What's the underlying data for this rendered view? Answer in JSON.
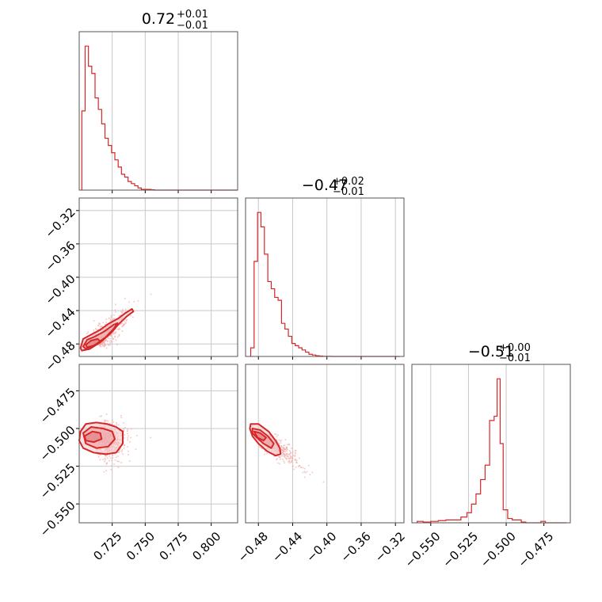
{
  "colors": {
    "accent": "#d62728",
    "fill": "#f4c6c7",
    "grid": "#c8c8c8",
    "frame": "#555555",
    "scatter": "#f2a9aa"
  },
  "chart_data": [
    {
      "type": "histogram",
      "panel": "p11",
      "title_main": "0.72",
      "title_sup": "+0.01",
      "title_sub": "−0.01",
      "xlim": [
        0.7,
        0.82
      ],
      "ylim": [
        0,
        1.1
      ],
      "grid": true,
      "bin_edges": [
        0.702,
        0.7045,
        0.707,
        0.7095,
        0.712,
        0.7145,
        0.717,
        0.7195,
        0.722,
        0.7245,
        0.727,
        0.7295,
        0.732,
        0.7345,
        0.737,
        0.7395,
        0.742,
        0.7445,
        0.747,
        0.7495,
        0.752,
        0.7545,
        0.757,
        0.82
      ],
      "counts": [
        0.55,
        1.0,
        0.86,
        0.81,
        0.64,
        0.56,
        0.46,
        0.36,
        0.31,
        0.26,
        0.21,
        0.16,
        0.11,
        0.09,
        0.06,
        0.045,
        0.03,
        0.015,
        0.005,
        0.005,
        0.005,
        0.002,
        0.0
      ]
    },
    {
      "type": "histogram",
      "panel": "p22",
      "title_main": "−0.47",
      "title_sup": "+0.02",
      "title_sub": "−0.01",
      "xlim": [
        -0.495,
        -0.31
      ],
      "ylim": [
        0,
        1.1
      ],
      "grid": true,
      "bin_edges": [
        -0.489,
        -0.485,
        -0.481,
        -0.477,
        -0.473,
        -0.469,
        -0.465,
        -0.461,
        -0.457,
        -0.453,
        -0.449,
        -0.445,
        -0.441,
        -0.437,
        -0.433,
        -0.429,
        -0.425,
        -0.421,
        -0.417,
        -0.413,
        -0.409,
        -0.405,
        -0.395,
        -0.315
      ],
      "counts": [
        0.06,
        0.66,
        1.0,
        0.9,
        0.71,
        0.52,
        0.47,
        0.41,
        0.39,
        0.23,
        0.19,
        0.14,
        0.09,
        0.075,
        0.06,
        0.045,
        0.03,
        0.015,
        0.01,
        0.005,
        0.003,
        0.001,
        0.0
      ]
    },
    {
      "type": "histogram",
      "panel": "p33",
      "title_main": "−0.51",
      "title_sup": "+0.00",
      "title_sub": "−0.01",
      "xlim": [
        -0.5625,
        -0.4575
      ],
      "ylim": [
        0,
        1.1
      ],
      "grid": true,
      "bin_edges": [
        -0.559,
        -0.555,
        -0.55,
        -0.545,
        -0.54,
        -0.535,
        -0.53,
        -0.526,
        -0.523,
        -0.52,
        -0.517,
        -0.514,
        -0.511,
        -0.508,
        -0.506,
        -0.504,
        -0.502,
        -0.499,
        -0.496,
        -0.493,
        -0.49,
        -0.487,
        -0.477,
        -0.474,
        -0.46
      ],
      "counts": [
        0.01,
        0.005,
        0.01,
        0.015,
        0.02,
        0.02,
        0.04,
        0.07,
        0.13,
        0.2,
        0.3,
        0.4,
        0.71,
        0.74,
        1.0,
        0.55,
        0.09,
        0.03,
        0.02,
        0.02,
        0.005,
        0.0,
        0.01,
        0.0
      ]
    },
    {
      "type": "scatter",
      "panel": "p21",
      "xlim": [
        0.7,
        0.82
      ],
      "ylim": [
        -0.495,
        -0.305
      ],
      "grid": true,
      "yticks": [
        -0.32,
        -0.36,
        -0.4,
        -0.44,
        -0.48
      ],
      "ytick_labels": [
        "−0.32",
        "−0.36",
        "−0.40",
        "−0.44",
        "−0.48"
      ],
      "center": [
        0.712,
        -0.48
      ],
      "direction": [
        0.0122,
        0.02
      ],
      "spread_along": 1.0,
      "spread_across": 0.0045,
      "contours": [
        [
          [
            0.701,
            -0.485
          ],
          [
            0.703,
            -0.474
          ],
          [
            0.71,
            -0.468
          ],
          [
            0.716,
            -0.463
          ],
          [
            0.722,
            -0.456
          ],
          [
            0.73,
            -0.449
          ],
          [
            0.735,
            -0.443
          ],
          [
            0.74,
            -0.438
          ],
          [
            0.741,
            -0.441
          ],
          [
            0.736,
            -0.447
          ],
          [
            0.73,
            -0.456
          ],
          [
            0.724,
            -0.467
          ],
          [
            0.716,
            -0.478
          ],
          [
            0.708,
            -0.486
          ],
          [
            0.702,
            -0.488
          ]
        ],
        [
          [
            0.703,
            -0.483
          ],
          [
            0.706,
            -0.475
          ],
          [
            0.712,
            -0.471
          ],
          [
            0.719,
            -0.465
          ],
          [
            0.726,
            -0.457
          ],
          [
            0.729,
            -0.455
          ],
          [
            0.726,
            -0.462
          ],
          [
            0.72,
            -0.472
          ],
          [
            0.712,
            -0.481
          ],
          [
            0.705,
            -0.486
          ]
        ],
        [
          [
            0.705,
            -0.481
          ],
          [
            0.709,
            -0.476
          ],
          [
            0.714,
            -0.474
          ],
          [
            0.716,
            -0.477
          ],
          [
            0.711,
            -0.482
          ],
          [
            0.706,
            -0.484
          ]
        ]
      ]
    },
    {
      "type": "scatter",
      "panel": "p31",
      "xlim": [
        0.7,
        0.82
      ],
      "ylim": [
        -0.5625,
        -0.4575
      ],
      "grid": true,
      "yticks": [
        -0.475,
        -0.5,
        -0.525,
        -0.55
      ],
      "ytick_labels": [
        "−0.475",
        "−0.500",
        "−0.525",
        "−0.550"
      ],
      "xticks": [
        0.725,
        0.75,
        0.775,
        0.8
      ],
      "xtick_labels": [
        "0.725",
        "0.750",
        "0.775",
        "0.800"
      ],
      "center": [
        0.718,
        -0.508
      ],
      "direction": [
        1,
        0
      ],
      "spread_along": 0.009,
      "spread_across": 0.007,
      "contours": [
        [
          [
            0.701,
            -0.502
          ],
          [
            0.705,
            -0.497
          ],
          [
            0.713,
            -0.496
          ],
          [
            0.721,
            -0.497
          ],
          [
            0.728,
            -0.499
          ],
          [
            0.733,
            -0.502
          ],
          [
            0.733,
            -0.51
          ],
          [
            0.728,
            -0.516
          ],
          [
            0.72,
            -0.517
          ],
          [
            0.711,
            -0.516
          ],
          [
            0.703,
            -0.513
          ],
          [
            0.7,
            -0.508
          ]
        ],
        [
          [
            0.703,
            -0.503
          ],
          [
            0.709,
            -0.499
          ],
          [
            0.718,
            -0.5
          ],
          [
            0.725,
            -0.502
          ],
          [
            0.727,
            -0.507
          ],
          [
            0.722,
            -0.512
          ],
          [
            0.713,
            -0.513
          ],
          [
            0.705,
            -0.51
          ]
        ],
        [
          [
            0.704,
            -0.505
          ],
          [
            0.71,
            -0.502
          ],
          [
            0.716,
            -0.503
          ],
          [
            0.717,
            -0.507
          ],
          [
            0.711,
            -0.509
          ],
          [
            0.705,
            -0.508
          ]
        ]
      ]
    },
    {
      "type": "scatter",
      "panel": "p32",
      "xlim": [
        -0.495,
        -0.31
      ],
      "ylim": [
        -0.5625,
        -0.4575
      ],
      "grid": true,
      "xticks": [
        -0.48,
        -0.44,
        -0.4,
        -0.36,
        -0.32
      ],
      "xtick_labels": [
        "−0.48",
        "−0.44",
        "−0.40",
        "−0.36",
        "−0.32"
      ],
      "center": [
        -0.472,
        -0.507
      ],
      "direction": [
        0.02,
        -0.0085
      ],
      "spread_along": 1.0,
      "spread_across": 0.0035,
      "contours": [
        [
          [
            -0.489,
            -0.497
          ],
          [
            -0.48,
            -0.497
          ],
          [
            -0.468,
            -0.502
          ],
          [
            -0.46,
            -0.508
          ],
          [
            -0.455,
            -0.513
          ],
          [
            -0.454,
            -0.517
          ],
          [
            -0.46,
            -0.518
          ],
          [
            -0.47,
            -0.515
          ],
          [
            -0.48,
            -0.51
          ],
          [
            -0.487,
            -0.505
          ],
          [
            -0.49,
            -0.5
          ]
        ],
        [
          [
            -0.487,
            -0.5
          ],
          [
            -0.478,
            -0.501
          ],
          [
            -0.469,
            -0.505
          ],
          [
            -0.462,
            -0.51
          ],
          [
            -0.465,
            -0.513
          ],
          [
            -0.474,
            -0.51
          ],
          [
            -0.482,
            -0.506
          ],
          [
            -0.487,
            -0.503
          ]
        ],
        [
          [
            -0.485,
            -0.502
          ],
          [
            -0.478,
            -0.503
          ],
          [
            -0.471,
            -0.506
          ],
          [
            -0.474,
            -0.508
          ],
          [
            -0.481,
            -0.506
          ]
        ]
      ]
    }
  ]
}
